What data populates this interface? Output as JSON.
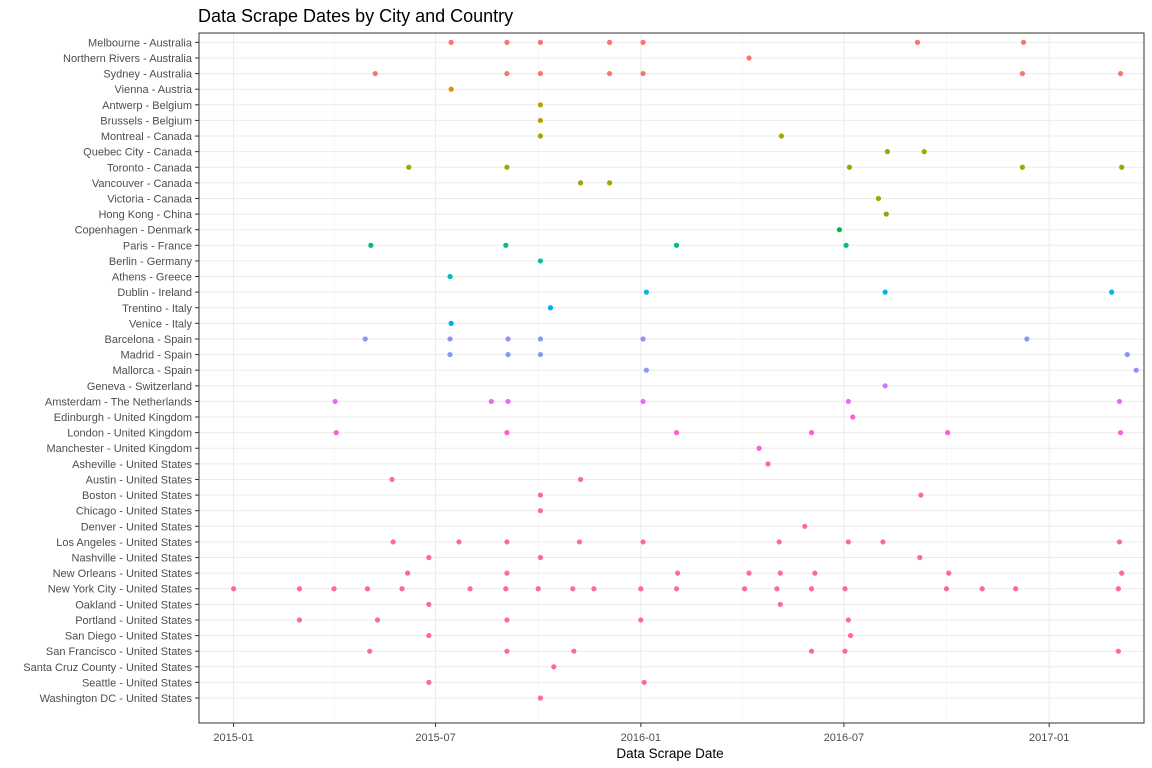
{
  "chart_data": {
    "type": "scatter",
    "title": "Data Scrape Dates by City and Country",
    "xlabel": "Data Scrape Date",
    "ylabel": "",
    "xlim": [
      "2014-12-01",
      "2017-03-27"
    ],
    "x_ticks": [
      "2015-01",
      "2015-07",
      "2016-01",
      "2016-07",
      "2017-01"
    ],
    "grid": true,
    "legend": "none",
    "categories": [
      "Melbourne - Australia",
      "Northern Rivers - Australia",
      "Sydney - Australia",
      "Vienna - Austria",
      "Antwerp - Belgium",
      "Brussels - Belgium",
      "Montreal - Canada",
      "Quebec City - Canada",
      "Toronto - Canada",
      "Vancouver - Canada",
      "Victoria - Canada",
      "Hong Kong - China",
      "Copenhagen - Denmark",
      "Paris - France",
      "Berlin - Germany",
      "Athens - Greece",
      "Dublin - Ireland",
      "Trentino - Italy",
      "Venice - Italy",
      "Barcelona - Spain",
      "Madrid - Spain",
      "Mallorca - Spain",
      "Geneva - Switzerland",
      "Amsterdam - The Netherlands",
      "Edinburgh - United Kingdom",
      "London - United Kingdom",
      "Manchester - United Kingdom",
      "Asheville - United States",
      "Austin - United States",
      "Boston - United States",
      "Chicago - United States",
      "Denver - United States",
      "Los Angeles - United States",
      "Nashville - United States",
      "New Orleans - United States",
      "New York City - United States",
      "Oakland - United States",
      "Portland - United States",
      "San Diego - United States",
      "San Francisco - United States",
      "Santa Cruz County - United States",
      "Seattle - United States",
      "Washington DC - United States"
    ],
    "series": [
      {
        "country": "Australia",
        "color": "#F8766D",
        "points": [
          [
            "Melbourne - Australia",
            [
              "2015-07-15",
              "2015-09-03",
              "2015-10-03",
              "2015-12-04",
              "2016-01-03",
              "2016-09-05",
              "2016-12-09"
            ]
          ],
          [
            "Northern Rivers - Australia",
            [
              "2016-04-07"
            ]
          ],
          [
            "Sydney - Australia",
            [
              "2015-05-08",
              "2015-09-03",
              "2015-10-03",
              "2015-12-04",
              "2016-01-03",
              "2016-12-08",
              "2017-03-06"
            ]
          ]
        ]
      },
      {
        "country": "Austria",
        "color": "#DE8C00",
        "points": [
          [
            "Vienna - Austria",
            [
              "2015-07-15"
            ]
          ]
        ]
      },
      {
        "country": "Belgium",
        "color": "#B79F00",
        "points": [
          [
            "Antwerp - Belgium",
            [
              "2015-10-03"
            ]
          ],
          [
            "Brussels - Belgium",
            [
              "2015-10-03"
            ]
          ]
        ]
      },
      {
        "country": "Canada",
        "color": "#A3A500",
        "points": [
          [
            "Montreal - Canada",
            [
              "2015-10-03",
              "2016-05-06"
            ]
          ],
          [
            "Quebec City - Canada",
            [
              "2016-08-09",
              "2016-09-11"
            ]
          ],
          [
            "Toronto - Canada",
            [
              "2015-06-07",
              "2015-09-03",
              "2016-07-06",
              "2016-12-08",
              "2017-03-07"
            ]
          ],
          [
            "Vancouver - Canada",
            [
              "2015-11-08",
              "2015-12-04"
            ]
          ],
          [
            "Victoria - Canada",
            [
              "2016-08-01"
            ]
          ]
        ]
      },
      {
        "country": "China",
        "color": "#7CAE00",
        "points": [
          [
            "Hong Kong - China",
            [
              "2016-08-08"
            ]
          ]
        ]
      },
      {
        "country": "Denmark",
        "color": "#00BA38",
        "points": [
          [
            "Copenhagen - Denmark",
            [
              "2016-06-27"
            ]
          ]
        ]
      },
      {
        "country": "France",
        "color": "#00BF7D",
        "points": [
          [
            "Paris - France",
            [
              "2015-05-04",
              "2015-09-02",
              "2016-02-02",
              "2016-07-03"
            ]
          ]
        ]
      },
      {
        "country": "Germany",
        "color": "#00C1A3",
        "points": [
          [
            "Berlin - Germany",
            [
              "2015-10-03"
            ]
          ]
        ]
      },
      {
        "country": "Greece",
        "color": "#00BFC4",
        "points": [
          [
            "Athens - Greece",
            [
              "2015-07-14"
            ]
          ]
        ]
      },
      {
        "country": "Ireland",
        "color": "#00B9E3",
        "points": [
          [
            "Dublin - Ireland",
            [
              "2016-01-06",
              "2016-08-07",
              "2017-02-26"
            ]
          ]
        ]
      },
      {
        "country": "Italy",
        "color": "#00ADFA",
        "points": [
          [
            "Trentino - Italy",
            [
              "2015-10-12"
            ]
          ],
          [
            "Venice - Italy",
            [
              "2015-07-15"
            ]
          ]
        ]
      },
      {
        "country": "Spain",
        "color": "#8B93FF",
        "points": [
          [
            "Barcelona - Spain",
            [
              "2015-04-29",
              "2015-07-14",
              "2015-09-04",
              "2015-10-03",
              "2016-01-03",
              "2016-12-12"
            ]
          ],
          [
            "Madrid - Spain",
            [
              "2015-07-14",
              "2015-09-04",
              "2015-10-03",
              "2017-03-12"
            ]
          ],
          [
            "Mallorca - Spain",
            [
              "2016-01-06",
              "2017-03-20"
            ]
          ]
        ]
      },
      {
        "country": "Switzerland",
        "color": "#C77CFF",
        "points": [
          [
            "Geneva - Switzerland",
            [
              "2016-08-07"
            ]
          ]
        ]
      },
      {
        "country": "The Netherlands",
        "color": "#E76BF3",
        "points": [
          [
            "Amsterdam - The Netherlands",
            [
              "2015-04-02",
              "2015-08-20",
              "2015-09-04",
              "2016-01-03",
              "2016-07-05",
              "2017-03-05"
            ]
          ]
        ]
      },
      {
        "country": "United Kingdom",
        "color": "#FD61D1",
        "points": [
          [
            "Edinburgh - United Kingdom",
            [
              "2016-07-09"
            ]
          ],
          [
            "London - United Kingdom",
            [
              "2015-04-03",
              "2015-09-03",
              "2016-02-02",
              "2016-06-02",
              "2016-10-02",
              "2017-03-06"
            ]
          ],
          [
            "Manchester - United Kingdom",
            [
              "2016-04-16"
            ]
          ]
        ]
      },
      {
        "country": "United States",
        "color": "#FF67A4",
        "points": [
          [
            "Asheville - United States",
            [
              "2016-04-24"
            ]
          ],
          [
            "Austin - United States",
            [
              "2015-05-23",
              "2015-11-08"
            ]
          ],
          [
            "Boston - United States",
            [
              "2015-10-03",
              "2016-09-08"
            ]
          ],
          [
            "Chicago - United States",
            [
              "2015-10-03"
            ]
          ],
          [
            "Denver - United States",
            [
              "2016-05-27"
            ]
          ],
          [
            "Los Angeles - United States",
            [
              "2015-05-24",
              "2015-07-22",
              "2015-09-03",
              "2015-11-07",
              "2016-01-03",
              "2016-05-04",
              "2016-07-05",
              "2016-08-05",
              "2017-03-05"
            ]
          ],
          [
            "Nashville - United States",
            [
              "2015-06-25",
              "2015-10-03",
              "2016-09-07"
            ]
          ],
          [
            "New Orleans - United States",
            [
              "2015-06-06",
              "2015-09-03",
              "2016-02-03",
              "2016-04-07",
              "2016-05-05",
              "2016-06-05",
              "2016-10-03",
              "2017-03-07"
            ]
          ],
          [
            "New York City - United States",
            [
              "2015-01-01",
              "2015-03-01",
              "2015-04-01",
              "2015-05-01",
              "2015-06-01",
              "2015-08-01",
              "2015-09-02",
              "2015-10-01",
              "2015-11-01",
              "2015-11-20",
              "2016-01-01",
              "2016-02-02",
              "2016-04-03",
              "2016-05-02",
              "2016-06-02",
              "2016-07-02",
              "2016-10-01",
              "2016-11-02",
              "2016-12-02",
              "2017-03-04"
            ]
          ],
          [
            "Oakland - United States",
            [
              "2015-06-25",
              "2016-05-05"
            ]
          ],
          [
            "Portland - United States",
            [
              "2015-03-01",
              "2015-05-10",
              "2015-09-03",
              "2016-01-01",
              "2016-07-05"
            ]
          ],
          [
            "San Diego - United States",
            [
              "2015-06-25",
              "2016-07-07"
            ]
          ],
          [
            "San Francisco - United States",
            [
              "2015-05-03",
              "2015-09-03",
              "2015-11-02",
              "2016-06-02",
              "2016-07-02",
              "2017-03-04"
            ]
          ],
          [
            "Santa Cruz County - United States",
            [
              "2015-10-15"
            ]
          ],
          [
            "Seattle - United States",
            [
              "2015-06-25",
              "2016-01-04"
            ]
          ],
          [
            "Washington DC - United States",
            [
              "2015-10-03"
            ]
          ]
        ]
      }
    ]
  }
}
